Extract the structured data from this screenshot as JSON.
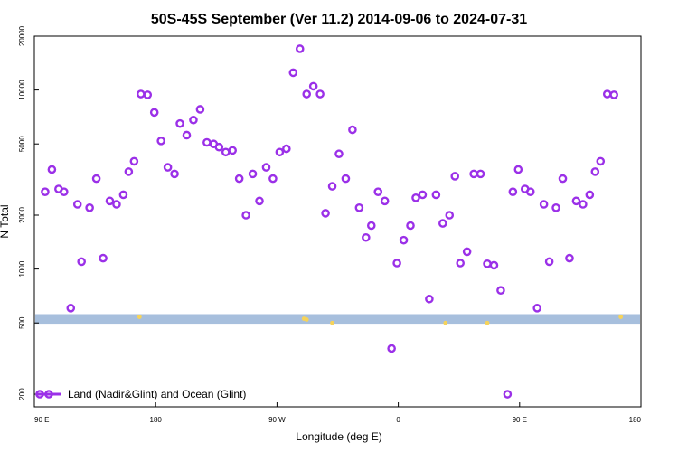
{
  "chart_data": {
    "type": "scatter",
    "title": "50S-45S September (Ver 11.2)   2014-09-06 to 2024-07-31",
    "xlabel": "Longitude (deg E)",
    "ylabel": "N Total",
    "x_ticks": [
      {
        "value": 90,
        "label": "90 E"
      },
      {
        "value": 180,
        "label": "180"
      },
      {
        "value": 270,
        "label": "90 W"
      },
      {
        "value": 360,
        "label": "0"
      },
      {
        "value": 450,
        "label": "90 E"
      },
      {
        "value": 540,
        "label": "180"
      }
    ],
    "y_ticks": [
      200,
      500,
      1000,
      2000,
      5000,
      10000,
      20000
    ],
    "xlim": [
      90,
      540
    ],
    "ylim": [
      170,
      20000
    ],
    "yscale": "log",
    "grid": false,
    "legend_position": "bottom-left",
    "band": {
      "y_low": 495,
      "y_high": 560,
      "color": "#a7bfdd"
    },
    "band_markers": [
      {
        "x": 168,
        "y": 540
      },
      {
        "x": 290,
        "y": 528
      },
      {
        "x": 292,
        "y": 522
      },
      {
        "x": 311,
        "y": 500
      },
      {
        "x": 395,
        "y": 500
      },
      {
        "x": 426,
        "y": 500
      },
      {
        "x": 525,
        "y": 540
      }
    ],
    "band_marker_color": "#f6d35a",
    "series": [
      {
        "name": "Land (Nadir&Glint) and Ocean (Glint)",
        "color": "#9b30e8",
        "points": [
          [
            98,
            2700
          ],
          [
            103,
            3600
          ],
          [
            108,
            2800
          ],
          [
            112,
            2700
          ],
          [
            117,
            605
          ],
          [
            122,
            2300
          ],
          [
            125,
            1100
          ],
          [
            131,
            2200
          ],
          [
            136,
            3200
          ],
          [
            141,
            1150
          ],
          [
            146,
            2400
          ],
          [
            151,
            2300
          ],
          [
            156,
            2600
          ],
          [
            160,
            3500
          ],
          [
            164,
            4000
          ],
          [
            169,
            9500
          ],
          [
            174,
            9400
          ],
          [
            179,
            7500
          ],
          [
            184,
            5200
          ],
          [
            189,
            3700
          ],
          [
            194,
            3400
          ],
          [
            198,
            6500
          ],
          [
            203,
            5600
          ],
          [
            208,
            6800
          ],
          [
            213,
            7800
          ],
          [
            218,
            5100
          ],
          [
            223,
            5000
          ],
          [
            227,
            4800
          ],
          [
            232,
            4500
          ],
          [
            237,
            4600
          ],
          [
            242,
            3200
          ],
          [
            247,
            2000
          ],
          [
            252,
            3400
          ],
          [
            257,
            2400
          ],
          [
            262,
            3700
          ],
          [
            267,
            3200
          ],
          [
            272,
            4500
          ],
          [
            277,
            4700
          ],
          [
            282,
            12500
          ],
          [
            287,
            17000
          ],
          [
            292,
            9500
          ],
          [
            297,
            10500
          ],
          [
            302,
            9500
          ],
          [
            306,
            2050
          ],
          [
            311,
            2900
          ],
          [
            316,
            4400
          ],
          [
            321,
            3200
          ],
          [
            326,
            6000
          ],
          [
            331,
            2200
          ],
          [
            336,
            1500
          ],
          [
            340,
            1750
          ],
          [
            345,
            2700
          ],
          [
            350,
            2400
          ],
          [
            355,
            360
          ],
          [
            359,
            1080
          ],
          [
            364,
            1450
          ],
          [
            369,
            1750
          ],
          [
            373,
            2500
          ],
          [
            378,
            2600
          ],
          [
            383,
            680
          ],
          [
            388,
            2600
          ],
          [
            393,
            1800
          ],
          [
            398,
            2000
          ],
          [
            402,
            3300
          ],
          [
            406,
            1080
          ],
          [
            411,
            1250
          ],
          [
            416,
            3400
          ],
          [
            421,
            3400
          ],
          [
            426,
            1070
          ],
          [
            431,
            1050
          ],
          [
            436,
            760
          ],
          [
            441,
            200
          ],
          [
            445,
            2700
          ],
          [
            449,
            3600
          ],
          [
            454,
            2800
          ],
          [
            458,
            2700
          ],
          [
            463,
            605
          ],
          [
            468,
            2300
          ],
          [
            472,
            1100
          ],
          [
            477,
            2200
          ],
          [
            482,
            3200
          ],
          [
            487,
            1150
          ],
          [
            492,
            2400
          ],
          [
            497,
            2300
          ],
          [
            502,
            2600
          ],
          [
            506,
            3500
          ],
          [
            510,
            4000
          ],
          [
            515,
            9500
          ],
          [
            520,
            9400
          ]
        ]
      }
    ]
  }
}
